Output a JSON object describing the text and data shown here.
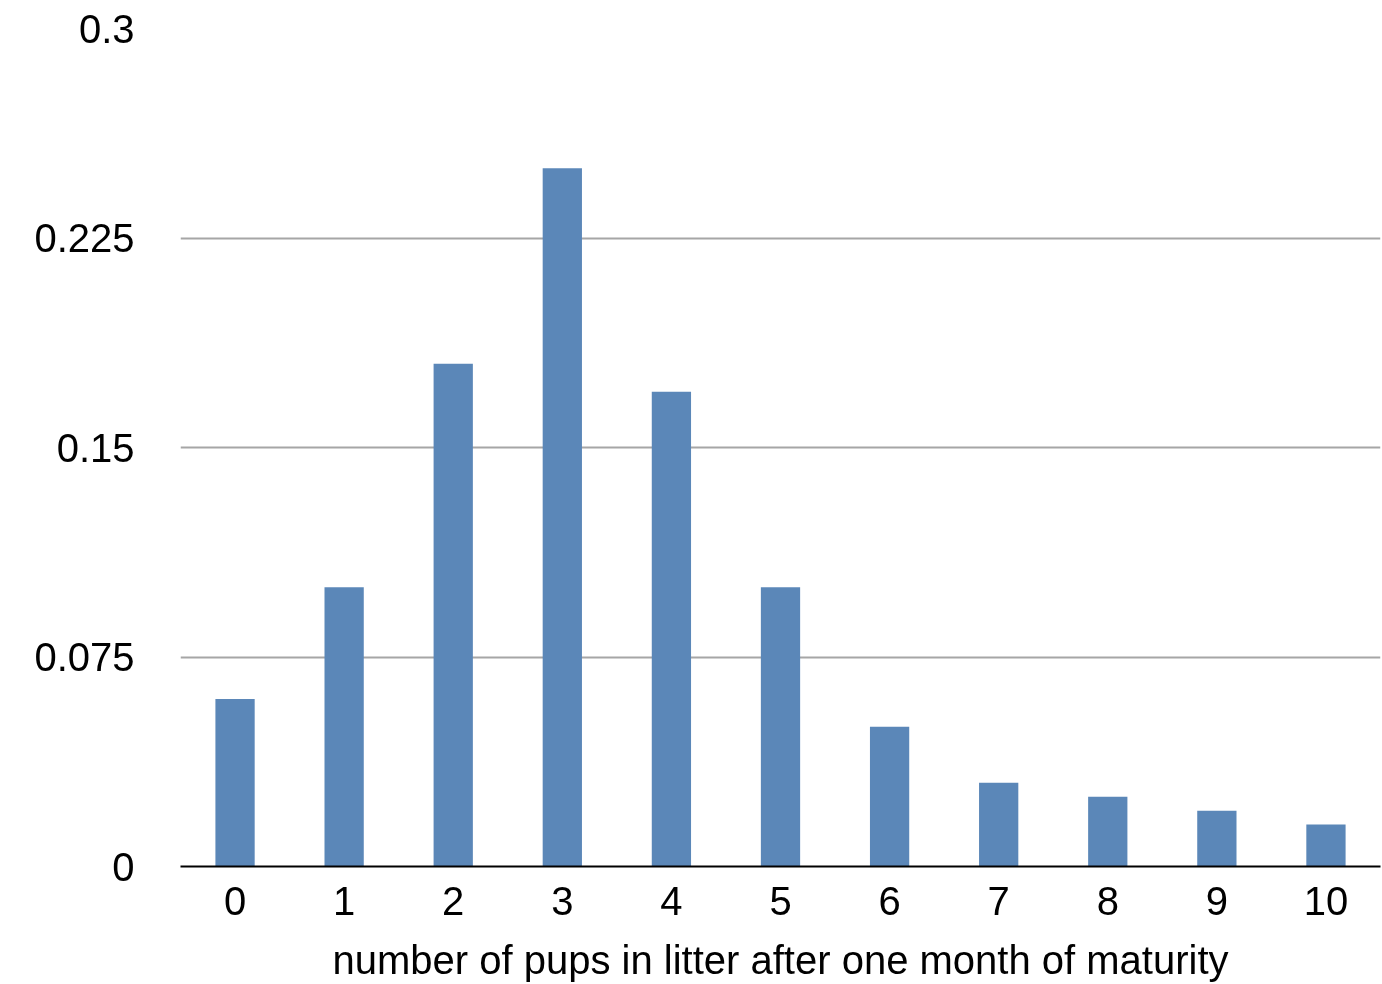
{
  "chart_data": {
    "type": "bar",
    "xlabel": "number of pups in litter after one month of maturity",
    "categories": [
      "0",
      "1",
      "2",
      "3",
      "4",
      "5",
      "6",
      "7",
      "8",
      "9",
      "10"
    ],
    "values": [
      0.06,
      0.1,
      0.18,
      0.25,
      0.17,
      0.1,
      0.05,
      0.03,
      0.025,
      0.02,
      0.015
    ],
    "color": "#5b87b8",
    "ylim": [
      0,
      0.3
    ],
    "yticks": [
      0,
      0.075,
      0.15,
      0.225,
      0.3
    ],
    "grid": "y"
  }
}
